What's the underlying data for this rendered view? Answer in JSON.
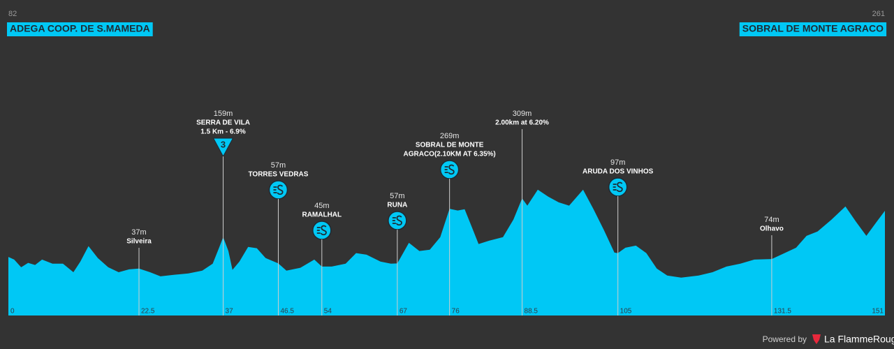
{
  "chart_data": {
    "type": "elevation",
    "start": {
      "altitude": 82,
      "name": "ADEGA COOP. DE S.MAMEDA"
    },
    "finish": {
      "altitude": 261,
      "name": "SOBRAL DE MONTE AGRACO"
    },
    "xlim": [
      0,
      151
    ],
    "ylim": [
      -145,
      835
    ],
    "xticks": [
      0,
      22.5,
      37,
      46.5,
      54,
      67,
      76,
      88.5,
      105,
      131.5,
      151
    ],
    "color": "#00c8f5",
    "profile": {
      "km": [
        0,
        1,
        2.2,
        3.4,
        4.6,
        5.8,
        7.6,
        9.4,
        11.2,
        12.4,
        13.8,
        15.4,
        17.2,
        19,
        20.8,
        22.5,
        24.4,
        26.2,
        28.6,
        31,
        33.4,
        35.2,
        36.3,
        37,
        37.9,
        38.6,
        39.8,
        41.3,
        42.8,
        44.3,
        46.5,
        47.9,
        50.3,
        52.7,
        54,
        55.7,
        58.1,
        59.9,
        61.7,
        64.1,
        65.9,
        67,
        69,
        70.8,
        72.6,
        74.4,
        76,
        77.4,
        78.6,
        79.8,
        81,
        82.8,
        85.2,
        87,
        88.5,
        89.4,
        91.2,
        93,
        94.8,
        96.6,
        99,
        100.8,
        102.6,
        104.4,
        105,
        106.3,
        108.1,
        109.9,
        111.7,
        113.5,
        115.9,
        118.9,
        121.3,
        123.7,
        126.1,
        128.5,
        131.5,
        133.9,
        135.7,
        137.5,
        139.4,
        141.8,
        144.2,
        146,
        147.8,
        149.6,
        151
      ],
      "elevation": [
        82,
        72,
        42,
        59,
        51,
        72,
        56,
        56,
        23,
        64,
        124,
        78,
        42,
        23,
        34,
        37,
        23,
        7,
        13,
        18,
        29,
        56,
        118,
        159,
        105,
        32,
        64,
        121,
        116,
        78,
        57,
        29,
        40,
        72,
        45,
        45,
        56,
        97,
        91,
        64,
        56,
        57,
        137,
        105,
        110,
        159,
        269,
        262,
        267,
        200,
        132,
        145,
        159,
        227,
        309,
        281,
        343,
        316,
        294,
        281,
        343,
        267,
        186,
        99,
        97,
        118,
        126,
        97,
        37,
        10,
        2,
        10,
        23,
        45,
        56,
        72,
        74,
        99,
        118,
        164,
        181,
        227,
        278,
        219,
        164,
        219,
        261
      ]
    },
    "waypoints": {
      "km": [
        22.5,
        37,
        46.5,
        54,
        67,
        76,
        88.5,
        105,
        131.5
      ],
      "values": [
        37,
        159,
        57,
        45,
        57,
        269,
        309,
        97,
        74
      ],
      "value_labels": [
        "37m",
        "159m",
        "57m",
        "45m",
        "57m",
        "269m",
        "309m",
        "97m",
        "74m"
      ],
      "names": [
        "Silveira",
        "SERRA DE VILA",
        "TORRES VEDRAS",
        "RAMALHAL",
        "RUNA",
        "SOBRAL DE MONTE",
        null,
        "ARUDA DOS VINHOS",
        "Olhavo"
      ],
      "notes": [
        null,
        "1.5 Km - 6.9%",
        null,
        null,
        null,
        "AGRACO(2.10KM AT 6.35%)",
        "2.00km at 6.20%",
        null,
        null
      ],
      "categories": [
        null,
        3,
        null,
        null,
        null,
        null,
        null,
        null,
        null
      ]
    },
    "footer": {
      "powered_by": "Powered by",
      "brand": "La FlammeRouge"
    }
  }
}
